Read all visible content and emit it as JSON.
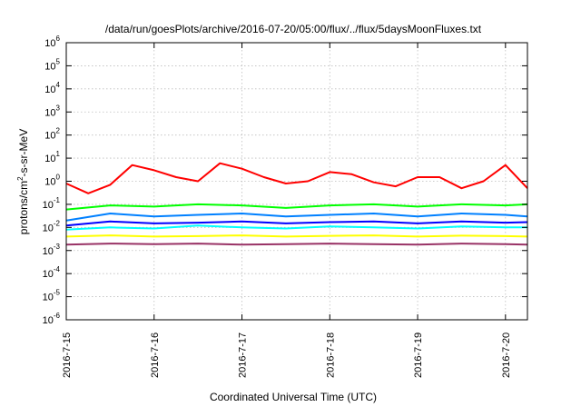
{
  "chart_data": {
    "type": "line",
    "title": "/data/run/goesPlots/archive/2016-07-20/05:00/flux/../flux/5daysMoonFluxes.txt",
    "xlabel": "Coordinated Universal Time (UTC)",
    "ylabel_parts": [
      "protons/cm",
      "2",
      "-s-sr-MeV"
    ],
    "yscale": "log",
    "ylim": [
      1e-06,
      1000000.0
    ],
    "xlim_days": [
      "2016-7-15",
      "2016-7-20 06:00"
    ],
    "grid": true,
    "x_tick_labels": [
      "2016-7-15",
      "2016-7-16",
      "2016-7-17",
      "2016-7-18",
      "2016-7-19",
      "2016-7-20"
    ],
    "y_ticks": [
      {
        "base": "10",
        "exp": "-6"
      },
      {
        "base": "10",
        "exp": "-5"
      },
      {
        "base": "10",
        "exp": "-4"
      },
      {
        "base": "10",
        "exp": "-3"
      },
      {
        "base": "10",
        "exp": "-2"
      },
      {
        "base": "10",
        "exp": "-1"
      },
      {
        "base": "10",
        "exp": "0"
      },
      {
        "base": "10",
        "exp": "1"
      },
      {
        "base": "10",
        "exp": "2"
      },
      {
        "base": "10",
        "exp": "3"
      },
      {
        "base": "10",
        "exp": "4"
      },
      {
        "base": "10",
        "exp": "5"
      },
      {
        "base": "10",
        "exp": "6"
      }
    ],
    "series": [
      {
        "color": "#ff0000",
        "x": [
          "2016-7-15 00:00",
          "2016-7-15 06:00",
          "2016-7-15 12:00",
          "2016-7-15 18:00",
          "2016-7-16 00:00",
          "2016-7-16 06:00",
          "2016-7-16 12:00",
          "2016-7-16 18:00",
          "2016-7-17 00:00",
          "2016-7-17 06:00",
          "2016-7-17 12:00",
          "2016-7-17 18:00",
          "2016-7-18 00:00",
          "2016-7-18 06:00",
          "2016-7-18 12:00",
          "2016-7-18 18:00",
          "2016-7-19 00:00",
          "2016-7-19 06:00",
          "2016-7-19 12:00",
          "2016-7-19 18:00",
          "2016-7-20 00:00",
          "2016-7-20 06:00"
        ],
        "y": [
          0.8,
          0.3,
          0.7,
          5.0,
          3.0,
          1.5,
          1.0,
          6.0,
          3.5,
          1.5,
          0.8,
          1.0,
          2.5,
          2.0,
          0.9,
          0.6,
          1.5,
          1.5,
          0.5,
          1.0,
          5.0,
          0.5
        ]
      },
      {
        "color": "#00ff00",
        "x": [
          "2016-7-15 00:00",
          "2016-7-15 12:00",
          "2016-7-16 00:00",
          "2016-7-16 12:00",
          "2016-7-17 00:00",
          "2016-7-17 12:00",
          "2016-7-18 00:00",
          "2016-7-18 12:00",
          "2016-7-19 00:00",
          "2016-7-19 12:00",
          "2016-7-20 00:00",
          "2016-7-20 06:00"
        ],
        "y": [
          0.06,
          0.09,
          0.08,
          0.1,
          0.09,
          0.07,
          0.09,
          0.1,
          0.08,
          0.1,
          0.09,
          0.1
        ]
      },
      {
        "color": "#0080ff",
        "x": [
          "2016-7-15 00:00",
          "2016-7-15 12:00",
          "2016-7-16 00:00",
          "2016-7-16 12:00",
          "2016-7-17 00:00",
          "2016-7-17 12:00",
          "2016-7-18 00:00",
          "2016-7-18 12:00",
          "2016-7-19 00:00",
          "2016-7-19 12:00",
          "2016-7-20 00:00",
          "2016-7-20 06:00"
        ],
        "y": [
          0.02,
          0.04,
          0.03,
          0.035,
          0.04,
          0.03,
          0.035,
          0.04,
          0.03,
          0.04,
          0.035,
          0.03
        ]
      },
      {
        "color": "#00ffff",
        "x": [
          "2016-7-15 00:00",
          "2016-7-15 12:00",
          "2016-7-16 00:00",
          "2016-7-16 12:00",
          "2016-7-17 00:00",
          "2016-7-17 12:00",
          "2016-7-18 00:00",
          "2016-7-18 12:00",
          "2016-7-19 00:00",
          "2016-7-19 12:00",
          "2016-7-20 00:00",
          "2016-7-20 06:00"
        ],
        "y": [
          0.008,
          0.01,
          0.009,
          0.012,
          0.01,
          0.009,
          0.011,
          0.01,
          0.009,
          0.011,
          0.01,
          0.01
        ]
      },
      {
        "color": "#0000ff",
        "x": [
          "2016-7-15 00:00",
          "2016-7-15 12:00",
          "2016-7-16 00:00",
          "2016-7-16 12:00",
          "2016-7-17 00:00",
          "2016-7-17 12:00",
          "2016-7-18 00:00",
          "2016-7-18 12:00",
          "2016-7-19 00:00",
          "2016-7-19 12:00",
          "2016-7-20 00:00",
          "2016-7-20 06:00"
        ],
        "y": [
          0.012,
          0.018,
          0.015,
          0.016,
          0.018,
          0.015,
          0.017,
          0.018,
          0.015,
          0.018,
          0.016,
          0.017
        ]
      },
      {
        "color": "#ffff00",
        "x": [
          "2016-7-15 00:00",
          "2016-7-15 12:00",
          "2016-7-16 00:00",
          "2016-7-16 12:00",
          "2016-7-17 00:00",
          "2016-7-17 12:00",
          "2016-7-18 00:00",
          "2016-7-18 12:00",
          "2016-7-19 00:00",
          "2016-7-19 12:00",
          "2016-7-20 00:00",
          "2016-7-20 06:00"
        ],
        "y": [
          0.004,
          0.0045,
          0.004,
          0.0042,
          0.0045,
          0.004,
          0.0043,
          0.0045,
          0.004,
          0.0044,
          0.0042,
          0.004
        ]
      },
      {
        "color": "#993366",
        "x": [
          "2016-7-15 00:00",
          "2016-7-15 12:00",
          "2016-7-16 00:00",
          "2016-7-16 12:00",
          "2016-7-17 00:00",
          "2016-7-17 12:00",
          "2016-7-18 00:00",
          "2016-7-18 12:00",
          "2016-7-19 00:00",
          "2016-7-19 12:00",
          "2016-7-20 00:00",
          "2016-7-20 06:00"
        ],
        "y": [
          0.0018,
          0.002,
          0.0019,
          0.002,
          0.0018,
          0.0019,
          0.002,
          0.0019,
          0.0018,
          0.002,
          0.0019,
          0.0018
        ]
      }
    ]
  }
}
